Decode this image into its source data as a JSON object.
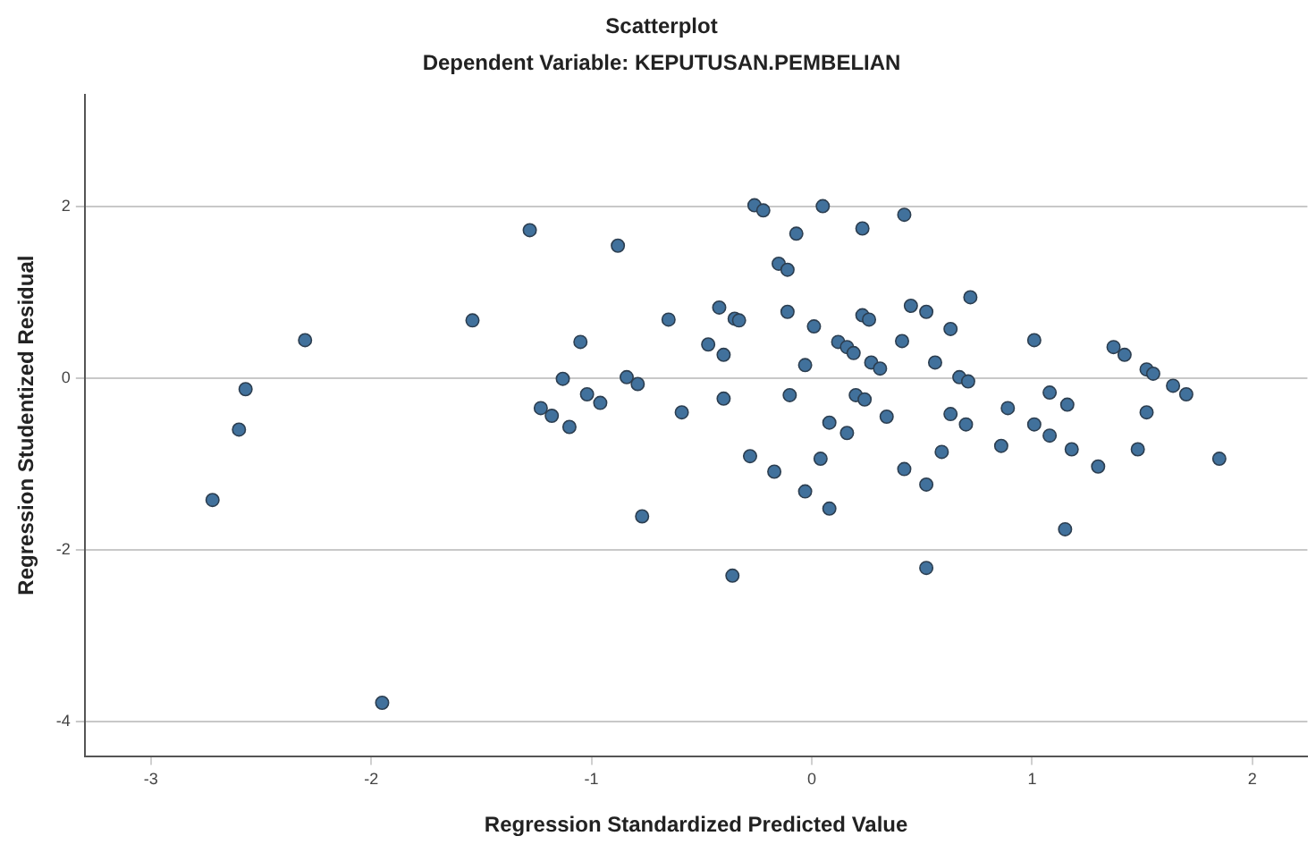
{
  "chart_data": {
    "type": "scatter",
    "title": "Scatterplot",
    "subtitle": "Dependent Variable: KEPUTUSAN.PEMBELIAN",
    "xlabel": "Regression Standardized Predicted Value",
    "ylabel": "Regression Studentized Residual",
    "xlim": [
      -3.3,
      2.25
    ],
    "xticks": [
      -3,
      -2,
      -1,
      0,
      1,
      2
    ],
    "ylim": [
      -4.4,
      3.3
    ],
    "yticks": [
      -4,
      -2,
      0,
      2
    ],
    "grid": "y",
    "legend": false,
    "marker": "circle",
    "series": [
      {
        "color": "#41719c",
        "x": [
          -2.72,
          -2.6,
          -2.57,
          -2.3,
          -1.95,
          -1.54,
          -1.28,
          -0.88,
          -1.05,
          -1.13,
          -1.23,
          -1.18,
          -1.1,
          -1.02,
          -0.96,
          -0.84,
          -0.79,
          -0.77,
          -0.65,
          -0.59,
          -0.42,
          -0.35,
          -0.33,
          -0.47,
          -0.4,
          -0.4,
          -0.28,
          -0.17,
          -0.03,
          0.08,
          -0.36,
          -0.26,
          -0.22,
          0.05,
          -0.07,
          0.23,
          0.42,
          -0.15,
          -0.11,
          -0.11,
          0.01,
          -0.03,
          -0.1,
          0.12,
          0.16,
          0.19,
          0.23,
          0.26,
          0.27,
          0.31,
          0.2,
          0.24,
          0.08,
          0.16,
          0.04,
          0.34,
          0.41,
          0.45,
          0.52,
          0.63,
          0.72,
          0.56,
          0.67,
          0.71,
          0.63,
          0.7,
          0.42,
          0.52,
          0.59,
          0.52,
          0.86,
          0.89,
          1.01,
          1.01,
          1.08,
          1.08,
          1.16,
          1.18,
          1.15,
          1.3,
          1.37,
          1.42,
          1.52,
          1.55,
          1.52,
          1.48,
          1.64,
          1.7,
          1.85
        ],
        "values": [
          -1.42,
          -0.6,
          -0.13,
          0.44,
          -3.78,
          0.67,
          1.72,
          1.54,
          0.42,
          -0.01,
          -0.35,
          -0.44,
          -0.57,
          -0.19,
          -0.29,
          0.01,
          -0.07,
          -1.61,
          0.68,
          -0.4,
          0.82,
          0.69,
          0.67,
          0.39,
          0.27,
          -0.24,
          -0.91,
          -1.09,
          -1.32,
          -1.52,
          -2.3,
          2.01,
          1.95,
          2.0,
          1.68,
          1.74,
          1.9,
          1.33,
          1.26,
          0.77,
          0.6,
          0.15,
          -0.2,
          0.42,
          0.36,
          0.29,
          0.73,
          0.68,
          0.18,
          0.11,
          -0.2,
          -0.25,
          -0.52,
          -0.64,
          -0.94,
          -0.45,
          0.43,
          0.84,
          0.77,
          0.57,
          0.94,
          0.18,
          0.01,
          -0.04,
          -0.42,
          -0.54,
          -1.06,
          -1.24,
          -0.86,
          -2.21,
          -0.79,
          -0.35,
          0.44,
          -0.54,
          -0.17,
          -0.67,
          -0.31,
          -0.83,
          -1.76,
          -1.03,
          0.36,
          0.27,
          0.1,
          0.05,
          -0.4,
          -0.83,
          -0.09,
          -0.19,
          -0.94
        ]
      }
    ]
  }
}
